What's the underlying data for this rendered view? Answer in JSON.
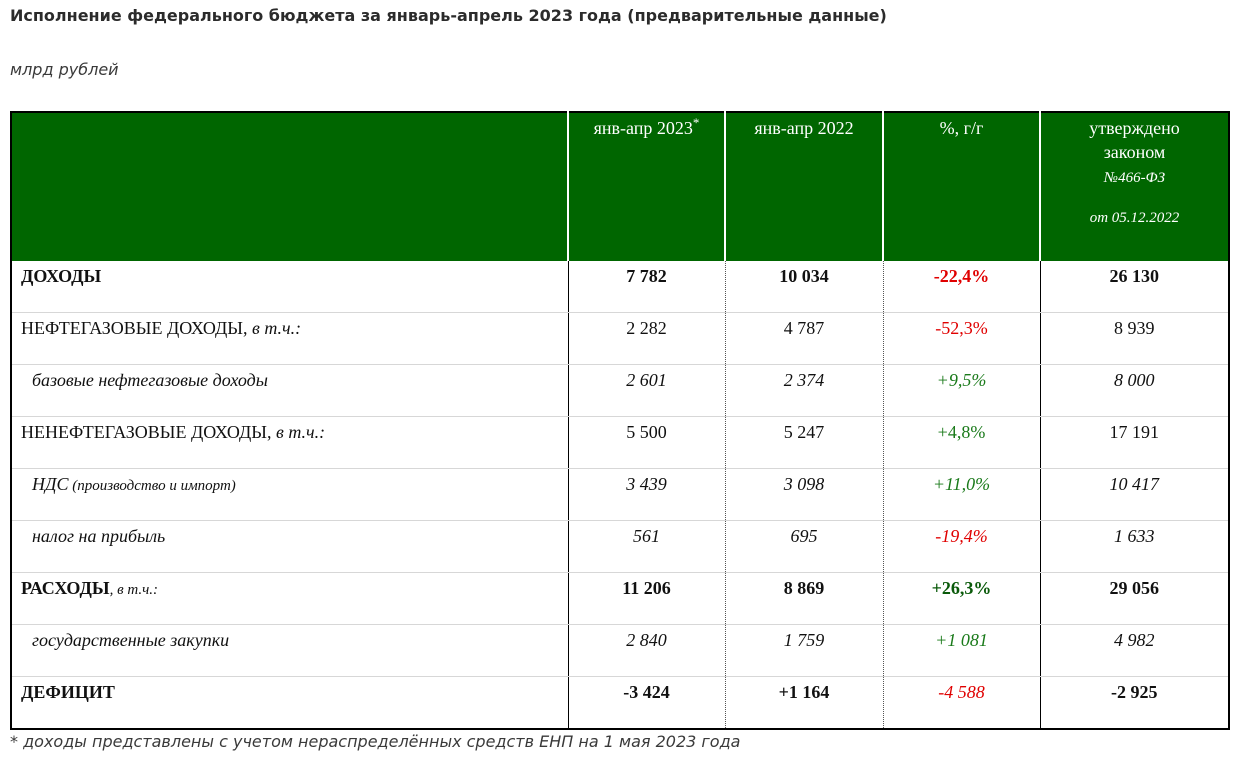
{
  "title": "Исполнение федерального бюджета за январь-апрель 2023 года (предварительные данные)",
  "units": "млрд рублей",
  "table": {
    "headers": {
      "h1": "янв-апр 2023",
      "h1_mark": "*",
      "h2": "янв-апр 2022",
      "h3": "%, г/г",
      "h4_line1": "утверждено",
      "h4_line2": "законом",
      "h4_law": "№466-ФЗ",
      "h4_date": "от 05.12.2022"
    },
    "rows": [
      {
        "label": "ДОХОДЫ",
        "suffix": "",
        "v2023": "7 782",
        "v2022": "10 034",
        "pct": "-22,4%",
        "law": "26 130"
      },
      {
        "label": "НЕФТЕГАЗОВЫЕ ДОХОДЫ,",
        "suffix": " в т.ч.:",
        "v2023": "2 282",
        "v2022": "4 787",
        "pct": "-52,3%",
        "law": "8 939"
      },
      {
        "label": "базовые нефтегазовые доходы",
        "suffix": "",
        "v2023": "2 601",
        "v2022": "2 374",
        "pct": "+9,5%",
        "law": "8 000"
      },
      {
        "label": "НЕНЕФТЕГАЗОВЫЕ ДОХОДЫ,",
        "suffix": " в т.ч.:",
        "v2023": "5 500",
        "v2022": "5 247",
        "pct": "+4,8%",
        "law": "17 191"
      },
      {
        "label": "НДС",
        "suffix": " (производство и импорт)",
        "v2023": "3 439",
        "v2022": "3 098",
        "pct": "+11,0%",
        "law": "10 417"
      },
      {
        "label": "налог на прибыль",
        "suffix": "",
        "v2023": "561",
        "v2022": "695",
        "pct": "-19,4%",
        "law": "1 633"
      },
      {
        "label": "РАСХОДЫ",
        "suffix": ", в т.ч.:",
        "v2023": "11 206",
        "v2022": "8 869",
        "pct": "+26,3%",
        "law": "29 056"
      },
      {
        "label": "государственные закупки",
        "suffix": "",
        "v2023": "2 840",
        "v2022": "1 759",
        "pct": "+1 081",
        "law": "4 982"
      },
      {
        "label": "ДЕФИЦИТ",
        "suffix": "",
        "v2023": "-3 424",
        "v2022": "+1 164",
        "pct": "-4 588",
        "law": "-2 925"
      }
    ]
  },
  "footnote": "* доходы представлены с учетом нераспределённых средств ЕНП на 1 мая 2023 года",
  "colors": {
    "header_bg": "#006600",
    "negative": "#e00000",
    "positive": "#1a7a1a"
  }
}
